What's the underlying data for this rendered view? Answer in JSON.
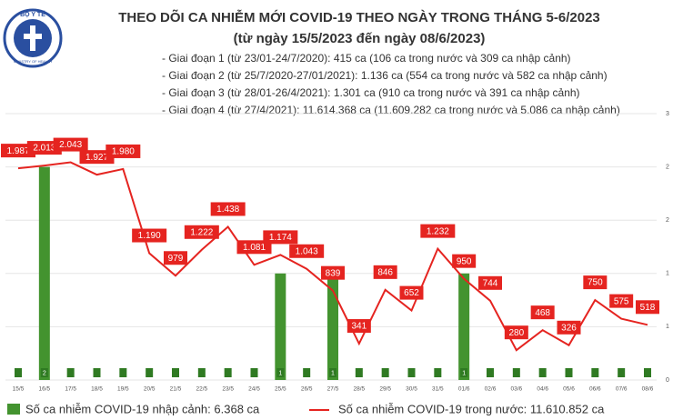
{
  "logo": {
    "top": "BỘ Y TẾ",
    "bottom": "MINISTRY OF HEALTH"
  },
  "chart_data": {
    "type": "combo",
    "title": "THEO DÕI CA NHIỄM MỚI COVID-19 THEO NGÀY TRONG THÁNG 5-6/2023",
    "subtitle": "(từ ngày 15/5/2023 đến ngày 08/6/2023)",
    "notes": [
      "- Giai đoạn 1 (từ 23/01-24/7/2020): 415 ca (106 ca trong nước và 309 ca nhập cảnh)",
      "- Giai đoạn 2 (từ 25/7/2020-27/01/2021): 1.136 ca (554 ca trong nước và 582 ca nhập cảnh)",
      "- Giai đoạn 3 (từ 28/01-26/4/2021): 1.301 ca (910 ca trong nước và 391 ca nhập cảnh)",
      "- Giai đoạn 4 (từ 27/4/2021): 11.614.368 ca (11.609.282 ca trong nước và 5.086 ca nhập cảnh)"
    ],
    "categories": [
      "15/5",
      "16/5",
      "17/5",
      "18/5",
      "19/5",
      "20/5",
      "21/5",
      "22/5",
      "23/5",
      "24/5",
      "25/5",
      "26/5",
      "27/5",
      "28/5",
      "29/5",
      "30/5",
      "31/5",
      "01/6",
      "02/6",
      "03/6",
      "04/6",
      "05/6",
      "06/6",
      "07/6",
      "08/6"
    ],
    "series": [
      {
        "name": "Số ca nhiễm COVID-19 nhập cảnh: 6.368 ca",
        "type": "bar",
        "axis": "y2",
        "color": "#43932f",
        "values": [
          0,
          2,
          0,
          0,
          0,
          0,
          0,
          0,
          0,
          0,
          1,
          0,
          1,
          0,
          0,
          0,
          0,
          1,
          0,
          0,
          0,
          0,
          0,
          0,
          0
        ]
      },
      {
        "name": "Số ca nhiễm COVID-19 trong nước: 11.610.852 ca",
        "type": "line",
        "color": "#e52420",
        "values": [
          1987,
          2013,
          2043,
          1927,
          1980,
          1190,
          979,
          1222,
          1438,
          1081,
          1174,
          1043,
          839,
          341,
          846,
          652,
          1232,
          950,
          744,
          280,
          468,
          326,
          750,
          575,
          518
        ],
        "value_labels": [
          "1.987",
          "2.013",
          "2.043",
          "1.927",
          "1.980",
          "1.190",
          "979",
          "1.222",
          "1.438",
          "1.081",
          "1.174",
          "1.043",
          "839",
          "341",
          "846",
          "652",
          "1.232",
          "950",
          "744",
          "280",
          "468",
          "326",
          "750",
          "575",
          "518"
        ]
      }
    ],
    "ylim": [
      0,
      2500
    ],
    "y2lim": [
      0,
      2.5
    ],
    "y2ticks": [
      0,
      {
        "value": 0.5,
        "label": "1"
      },
      1,
      {
        "value": 1.5,
        "label": "2"
      },
      2,
      {
        "value": 2.5,
        "label": "3"
      }
    ],
    "grid": true
  }
}
